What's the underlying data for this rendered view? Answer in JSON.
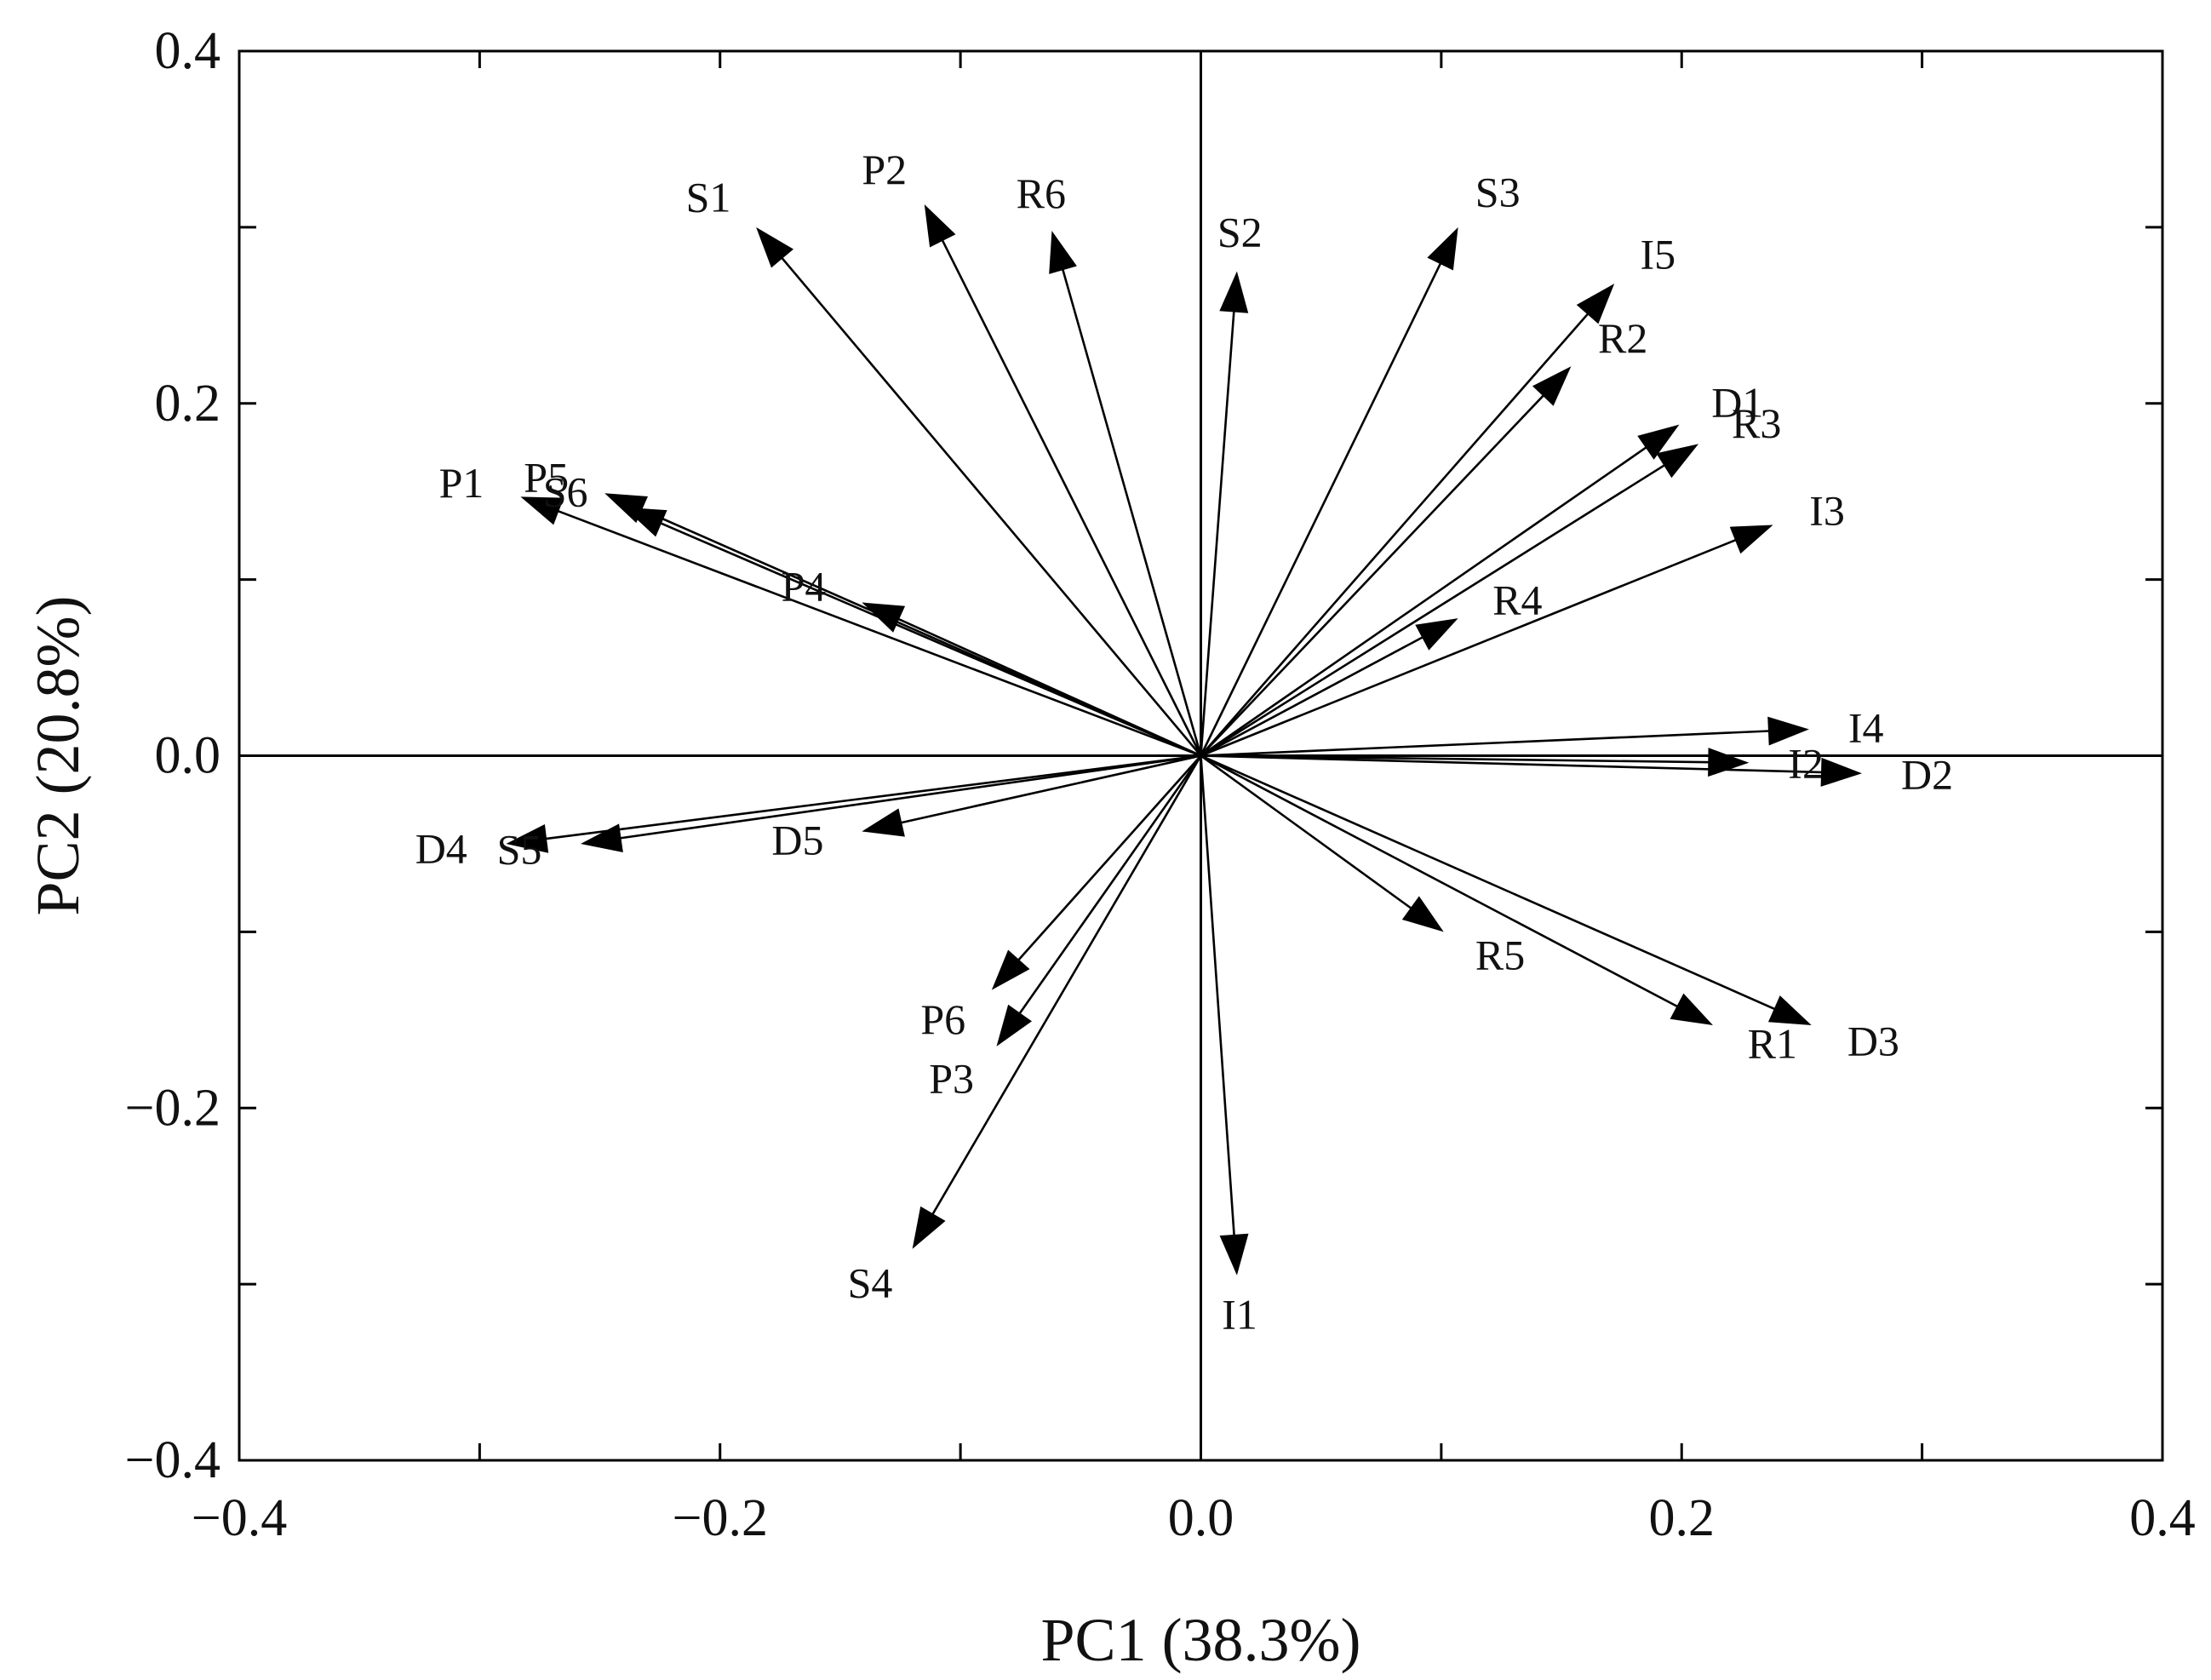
{
  "chart_data": {
    "type": "scatter",
    "subtype": "pca-biplot-loadings",
    "title": "",
    "xlabel": "PC1 (38.3%)",
    "ylabel": "PC2 (20.8%)",
    "xlim": [
      -0.4,
      0.4
    ],
    "ylim": [
      -0.4,
      0.4
    ],
    "x_ticks": [
      -0.4,
      -0.2,
      0.0,
      0.2,
      0.4
    ],
    "y_ticks": [
      -0.4,
      -0.2,
      0.0,
      0.2,
      0.4
    ],
    "x_tick_labels": [
      "−0.4",
      "−0.2",
      "0.0",
      "0.2",
      "0.4"
    ],
    "y_tick_labels": [
      "−0.4",
      "−0.2",
      "0.0",
      "0.2",
      "0.4"
    ],
    "grid": false,
    "zero_lines": true,
    "vectors": [
      {
        "label": "S1",
        "x": -0.185,
        "y": 0.3
      },
      {
        "label": "P2",
        "x": -0.115,
        "y": 0.313
      },
      {
        "label": "R6",
        "x": -0.062,
        "y": 0.298
      },
      {
        "label": "S2",
        "x": 0.015,
        "y": 0.275
      },
      {
        "label": "S3",
        "x": 0.107,
        "y": 0.3
      },
      {
        "label": "I5",
        "x": 0.172,
        "y": 0.268
      },
      {
        "label": "R2",
        "x": 0.154,
        "y": 0.221
      },
      {
        "label": "D1",
        "x": 0.199,
        "y": 0.188
      },
      {
        "label": "R3",
        "x": 0.207,
        "y": 0.177
      },
      {
        "label": "I3",
        "x": 0.238,
        "y": 0.131
      },
      {
        "label": "R4",
        "x": 0.107,
        "y": 0.078
      },
      {
        "label": "I4",
        "x": 0.253,
        "y": 0.015
      },
      {
        "label": "I2",
        "x": 0.228,
        "y": -0.004
      },
      {
        "label": "D2",
        "x": 0.275,
        "y": -0.01
      },
      {
        "label": "R5",
        "x": 0.101,
        "y": -0.1
      },
      {
        "label": "R1",
        "x": 0.213,
        "y": -0.153
      },
      {
        "label": "D3",
        "x": 0.254,
        "y": -0.153
      },
      {
        "label": "I1",
        "x": 0.015,
        "y": -0.295
      },
      {
        "label": "S4",
        "x": -0.12,
        "y": -0.28
      },
      {
        "label": "P3",
        "x": -0.085,
        "y": -0.165
      },
      {
        "label": "P6",
        "x": -0.087,
        "y": -0.133
      },
      {
        "label": "D5",
        "x": -0.141,
        "y": -0.043
      },
      {
        "label": "D4",
        "x": -0.289,
        "y": -0.05
      },
      {
        "label": "S5",
        "x": -0.258,
        "y": -0.05
      },
      {
        "label": "P4",
        "x": -0.141,
        "y": 0.087
      },
      {
        "label": "P1",
        "x": -0.283,
        "y": 0.147
      },
      {
        "label": "P5",
        "x": -0.248,
        "y": 0.149
      },
      {
        "label": "S6",
        "x": -0.24,
        "y": 0.141
      }
    ]
  }
}
